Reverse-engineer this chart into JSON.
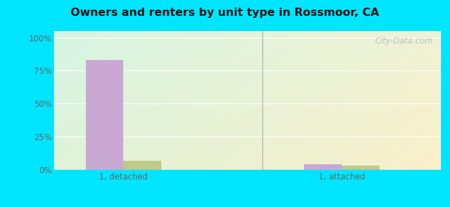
{
  "title": "Owners and renters by unit type in Rossmoor, CA",
  "categories": [
    "1, detached",
    "1, attached"
  ],
  "owner_values": [
    83,
    4
  ],
  "renter_values": [
    7,
    3
  ],
  "owner_color": "#c9a8d4",
  "renter_color": "#bec98a",
  "yticks": [
    0,
    25,
    50,
    75,
    100
  ],
  "ytick_labels": [
    "0%",
    "25%",
    "50%",
    "75%",
    "100%"
  ],
  "background_cyan": "#00e5ff",
  "watermark": "City-Data.com",
  "bar_width": 0.38,
  "group_positions": [
    1.0,
    3.2
  ]
}
